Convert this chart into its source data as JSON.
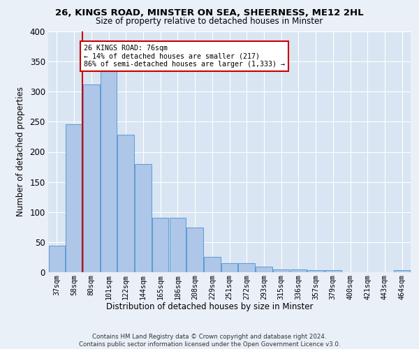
{
  "title_line1": "26, KINGS ROAD, MINSTER ON SEA, SHEERNESS, ME12 2HL",
  "title_line2": "Size of property relative to detached houses in Minster",
  "xlabel": "Distribution of detached houses by size in Minster",
  "ylabel": "Number of detached properties",
  "footnote": "Contains HM Land Registry data © Crown copyright and database right 2024.\nContains public sector information licensed under the Open Government Licence v3.0.",
  "bar_labels": [
    "37sqm",
    "58sqm",
    "80sqm",
    "101sqm",
    "122sqm",
    "144sqm",
    "165sqm",
    "186sqm",
    "208sqm",
    "229sqm",
    "251sqm",
    "272sqm",
    "293sqm",
    "315sqm",
    "336sqm",
    "357sqm",
    "379sqm",
    "400sqm",
    "421sqm",
    "443sqm",
    "464sqm"
  ],
  "bar_values": [
    44,
    246,
    312,
    335,
    228,
    180,
    91,
    91,
    74,
    26,
    15,
    15,
    9,
    5,
    5,
    4,
    4,
    0,
    0,
    0,
    4
  ],
  "bar_color": "#aec6e8",
  "bar_edge_color": "#5b9bd5",
  "bg_color": "#eaf0f8",
  "plot_bg_color": "#d9e5f2",
  "grid_color": "#ffffff",
  "vline_color": "#cc0000",
  "vline_pos": 1.5,
  "annotation_text": "26 KINGS ROAD: 76sqm\n← 14% of detached houses are smaller (217)\n86% of semi-detached houses are larger (1,333) →",
  "annotation_box_color": "#cc0000",
  "ylim": [
    0,
    400
  ],
  "yticks": [
    0,
    50,
    100,
    150,
    200,
    250,
    300,
    350,
    400
  ]
}
